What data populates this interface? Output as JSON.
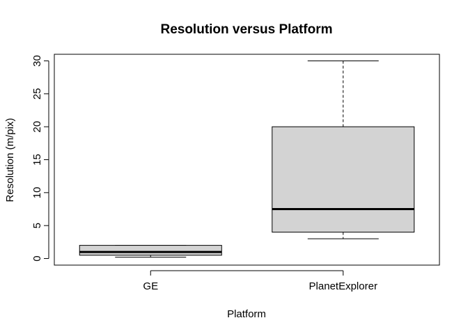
{
  "chart_data": {
    "type": "boxplot",
    "title": "Resolution versus Platform",
    "xlabel": "Platform",
    "ylabel": "Resolution (m/pix)",
    "categories": [
      "GE",
      "PlanetExplorer"
    ],
    "ylim": [
      -1,
      31
    ],
    "yticks": [
      0,
      5,
      10,
      15,
      20,
      25,
      30
    ],
    "grid": false,
    "legend": "none",
    "boxes": [
      {
        "category": "GE",
        "whisker_low": 0.2,
        "q1": 0.5,
        "median": 1,
        "q3": 2,
        "whisker_high": 2
      },
      {
        "category": "PlanetExplorer",
        "whisker_low": 3,
        "q1": 4,
        "median": 7.5,
        "q3": 20,
        "whisker_high": 30
      }
    ],
    "colors": {
      "box_fill": "#d3d3d3",
      "stroke": "#000000"
    }
  }
}
